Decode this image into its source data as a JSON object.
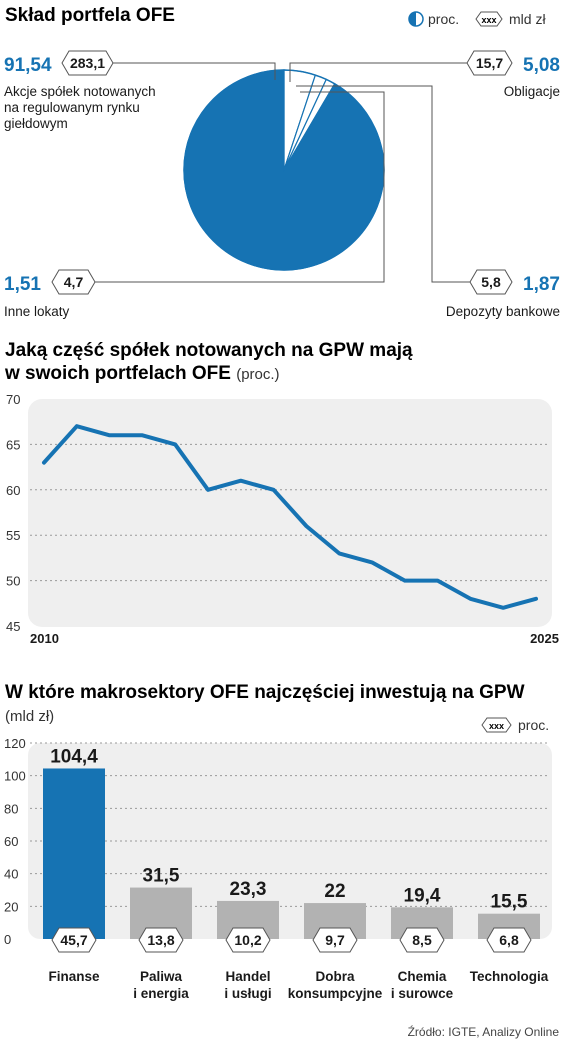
{
  "chart_data": [
    {
      "type": "pie",
      "title": "Skład portfela OFE",
      "legend": {
        "pct_label": "proc.",
        "value_label": "mld zł",
        "value_marker": "xxx"
      },
      "slices": [
        {
          "name": "Akcje spółek notowanych na regulowanym rynku giełdowym",
          "pct": "91,54",
          "value": "283,1",
          "pct_num": 91.54
        },
        {
          "name": "Obligacje",
          "pct": "5,08",
          "value": "15,7",
          "pct_num": 5.08
        },
        {
          "name": "Depozyty bankowe",
          "pct": "1,87",
          "value": "5,8",
          "pct_num": 1.87
        },
        {
          "name": "Inne lokaty",
          "pct": "1,51",
          "value": "4,7",
          "pct_num": 1.51
        }
      ],
      "colors": {
        "main": "#1673b3"
      }
    },
    {
      "type": "line",
      "title": "Jaką część spółek notowanych na GPW mają w swoich portfelach OFE",
      "title_line1": "Jaką część spółek notowanych na GPW mają",
      "title_line2": "w swoich portfelach OFE",
      "unit": "(proc.)",
      "x_start_label": "2010",
      "x_end_label": "2025",
      "x": [
        2010,
        2011,
        2012,
        2013,
        2014,
        2015,
        2016,
        2017,
        2018,
        2019,
        2020,
        2021,
        2022,
        2023,
        2024,
        2025
      ],
      "values": [
        63,
        67,
        66,
        66,
        65,
        60,
        61,
        60,
        56,
        53,
        52,
        50,
        50,
        48,
        47,
        48
      ],
      "ylim": [
        45,
        70
      ],
      "yticks": [
        45,
        50,
        55,
        60,
        65,
        70
      ],
      "grid": true,
      "color": "#1673b3"
    },
    {
      "type": "bar",
      "title": "W które makrosektory OFE najczęściej inwestują na GPW",
      "unit": "(mld zł)",
      "legend": {
        "marker": "xxx",
        "label": "proc."
      },
      "categories": [
        {
          "line1": "Finanse",
          "line2": ""
        },
        {
          "line1": "Paliwa",
          "line2": "i energia"
        },
        {
          "line1": "Handel",
          "line2": "i usługi"
        },
        {
          "line1": "Dobra",
          "line2": "konsumpcyjne"
        },
        {
          "line1": "Chemia",
          "line2": "i surowce"
        },
        {
          "line1": "Technologia",
          "line2": ""
        }
      ],
      "values": [
        104.4,
        31.5,
        23.3,
        22,
        19.4,
        15.5
      ],
      "value_labels": [
        "104,4",
        "31,5",
        "23,3",
        "22",
        "19,4",
        "15,5"
      ],
      "pct_labels": [
        "45,7",
        "13,8",
        "10,2",
        "9,7",
        "8,5",
        "6,8"
      ],
      "ylim": [
        0,
        120
      ],
      "yticks": [
        0,
        20,
        40,
        60,
        80,
        100,
        120
      ],
      "grid": true,
      "colors": {
        "highlight": "#1673b3",
        "other": "#b2b2b2"
      }
    }
  ],
  "source": "Źródło: IGTE, Analizy Online"
}
